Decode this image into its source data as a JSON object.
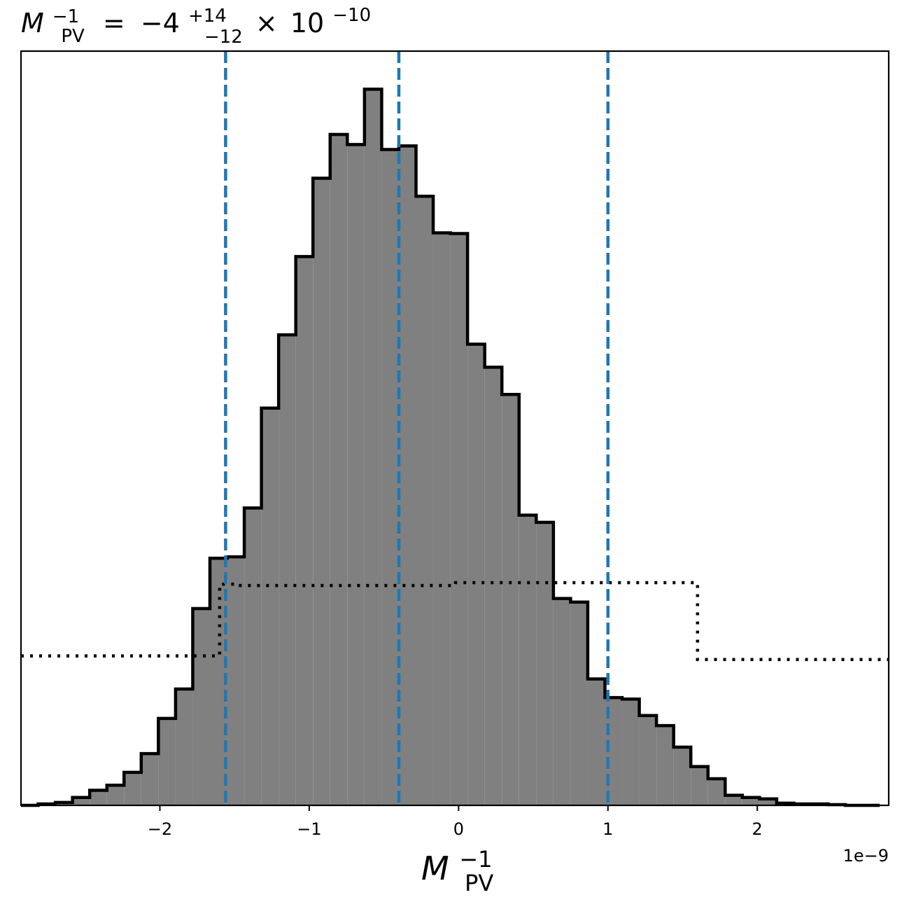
{
  "chart_data": {
    "type": "histogram",
    "title": {
      "symbol": "M",
      "superscript": "−1",
      "subscript": "PV",
      "equals": "=",
      "value": "−4",
      "upper_err": "+14",
      "lower_err": "−12",
      "times": "×",
      "base": "10",
      "exponent": "−10"
    },
    "xlabel": {
      "symbol": "M",
      "superscript": "−1",
      "subscript": "PV"
    },
    "offset_text": "1e−9",
    "xlim": [
      -2.93e-09,
      2.88e-09
    ],
    "ylim": [
      0,
      1.05
    ],
    "x_ticks": [
      {
        "value": -2e-09,
        "label": "−2"
      },
      {
        "value": -1e-09,
        "label": "−1"
      },
      {
        "value": 0,
        "label": "0"
      },
      {
        "value": 1e-09,
        "label": "1"
      },
      {
        "value": 2e-09,
        "label": "2"
      }
    ],
    "grid": false,
    "posterior_histogram": {
      "bin_edges_e9": [
        -2.93,
        -2.815,
        -2.7,
        -2.585,
        -2.47,
        -2.355,
        -2.24,
        -2.125,
        -2.01,
        -1.895,
        -1.78,
        -1.665,
        -1.55,
        -1.435,
        -1.32,
        -1.205,
        -1.09,
        -0.975,
        -0.86,
        -0.745,
        -0.63,
        -0.515,
        -0.4,
        -0.285,
        -0.17,
        -0.055,
        0.06,
        0.175,
        0.29,
        0.405,
        0.52,
        0.635,
        0.75,
        0.865,
        0.98,
        1.095,
        1.21,
        1.325,
        1.44,
        1.555,
        1.67,
        1.785,
        1.9,
        2.015,
        2.13,
        2.245,
        2.36,
        2.475,
        2.59,
        2.705,
        2.82
      ],
      "heights": [
        0,
        0.002,
        0.004,
        0.011,
        0.021,
        0.028,
        0.046,
        0.072,
        0.121,
        0.162,
        0.274,
        0.344,
        0.346,
        0.414,
        0.553,
        0.655,
        0.764,
        0.873,
        0.934,
        0.92,
        0.997,
        0.913,
        0.918,
        0.848,
        0.797,
        0.796,
        0.642,
        0.61,
        0.572,
        0.404,
        0.394,
        0.288,
        0.283,
        0.176,
        0.15,
        0.148,
        0.125,
        0.111,
        0.081,
        0.054,
        0.037,
        0.014,
        0.011,
        0.009,
        0.003,
        0.002,
        0.002,
        0.001,
        0,
        0
      ],
      "fill_color": "#808080",
      "edge_color": "#000000"
    },
    "prior_histogram": {
      "bin_edges_e9": [
        -2.93,
        -1.6,
        -1.5,
        -0.02,
        1.6,
        2.88
      ],
      "heights": [
        0.208,
        0.308,
        0.306,
        0.31,
        0.203
      ],
      "style": "dotted",
      "color": "#000000"
    },
    "quantile_lines": {
      "values_e9": [
        -1.56,
        -0.4,
        1.0
      ],
      "style": "dashed",
      "color": "#1f77b4"
    }
  }
}
